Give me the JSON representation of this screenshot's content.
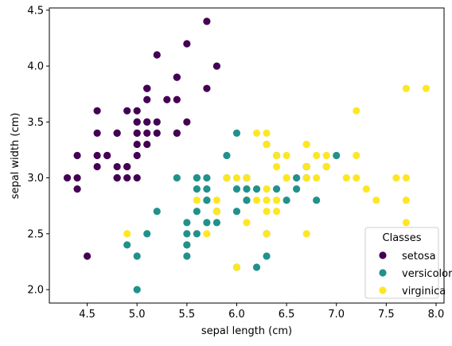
{
  "chart_data": {
    "type": "scatter",
    "xlabel": "sepal length (cm)",
    "ylabel": "sepal width (cm)",
    "xlim": [
      4.12,
      8.08
    ],
    "ylim": [
      1.88,
      4.52
    ],
    "xticks": [
      "4.5",
      "5.0",
      "5.5",
      "6.0",
      "6.5",
      "7.0",
      "7.5",
      "8.0"
    ],
    "yticks": [
      "2.0",
      "2.5",
      "3.0",
      "3.5",
      "4.0",
      "4.5"
    ],
    "grid": false,
    "legend": {
      "title": "Classes",
      "placement": "lower-right"
    },
    "series": [
      {
        "name": "setosa",
        "color": "#440154",
        "points": [
          [
            5.1,
            3.5
          ],
          [
            4.9,
            3.0
          ],
          [
            4.7,
            3.2
          ],
          [
            4.6,
            3.1
          ],
          [
            5.0,
            3.6
          ],
          [
            5.4,
            3.9
          ],
          [
            4.6,
            3.4
          ],
          [
            5.0,
            3.4
          ],
          [
            4.4,
            2.9
          ],
          [
            4.9,
            3.1
          ],
          [
            5.4,
            3.7
          ],
          [
            4.8,
            3.4
          ],
          [
            4.8,
            3.0
          ],
          [
            4.3,
            3.0
          ],
          [
            5.8,
            4.0
          ],
          [
            5.7,
            4.4
          ],
          [
            5.4,
            3.9
          ],
          [
            5.1,
            3.5
          ],
          [
            5.7,
            3.8
          ],
          [
            5.1,
            3.8
          ],
          [
            5.4,
            3.4
          ],
          [
            5.1,
            3.7
          ],
          [
            4.6,
            3.6
          ],
          [
            5.1,
            3.3
          ],
          [
            4.8,
            3.4
          ],
          [
            5.0,
            3.0
          ],
          [
            5.0,
            3.4
          ],
          [
            5.2,
            3.5
          ],
          [
            5.2,
            3.4
          ],
          [
            4.7,
            3.2
          ],
          [
            4.8,
            3.1
          ],
          [
            5.4,
            3.4
          ],
          [
            5.2,
            4.1
          ],
          [
            5.5,
            4.2
          ],
          [
            4.9,
            3.1
          ],
          [
            5.0,
            3.2
          ],
          [
            5.5,
            3.5
          ],
          [
            4.9,
            3.6
          ],
          [
            4.4,
            3.0
          ],
          [
            5.1,
            3.4
          ],
          [
            5.0,
            3.5
          ],
          [
            4.5,
            2.3
          ],
          [
            4.4,
            3.2
          ],
          [
            5.0,
            3.5
          ],
          [
            5.1,
            3.8
          ],
          [
            4.8,
            3.0
          ],
          [
            5.1,
            3.8
          ],
          [
            4.6,
            3.2
          ],
          [
            5.3,
            3.7
          ],
          [
            5.0,
            3.3
          ]
        ]
      },
      {
        "name": "versicolor",
        "color": "#21918c",
        "points": [
          [
            7.0,
            3.2
          ],
          [
            6.4,
            3.2
          ],
          [
            6.9,
            3.1
          ],
          [
            5.5,
            2.3
          ],
          [
            6.5,
            2.8
          ],
          [
            5.7,
            2.8
          ],
          [
            6.3,
            3.3
          ],
          [
            4.9,
            2.4
          ],
          [
            6.6,
            2.9
          ],
          [
            5.2,
            2.7
          ],
          [
            5.0,
            2.0
          ],
          [
            5.9,
            3.0
          ],
          [
            6.0,
            2.2
          ],
          [
            6.1,
            2.9
          ],
          [
            5.6,
            2.9
          ],
          [
            6.7,
            3.1
          ],
          [
            5.6,
            3.0
          ],
          [
            5.8,
            2.7
          ],
          [
            6.2,
            2.2
          ],
          [
            5.6,
            2.5
          ],
          [
            5.9,
            3.2
          ],
          [
            6.1,
            2.8
          ],
          [
            6.3,
            2.5
          ],
          [
            6.1,
            2.8
          ],
          [
            6.4,
            2.9
          ],
          [
            6.6,
            3.0
          ],
          [
            6.8,
            2.8
          ],
          [
            6.7,
            3.0
          ],
          [
            6.0,
            2.9
          ],
          [
            5.7,
            2.6
          ],
          [
            5.5,
            2.4
          ],
          [
            5.5,
            2.4
          ],
          [
            5.8,
            2.7
          ],
          [
            6.0,
            2.7
          ],
          [
            5.4,
            3.0
          ],
          [
            6.0,
            3.4
          ],
          [
            6.7,
            3.1
          ],
          [
            6.3,
            2.3
          ],
          [
            5.6,
            3.0
          ],
          [
            5.5,
            2.5
          ],
          [
            5.5,
            2.6
          ],
          [
            6.1,
            3.0
          ],
          [
            5.8,
            2.6
          ],
          [
            5.0,
            2.3
          ],
          [
            5.6,
            2.7
          ],
          [
            5.7,
            3.0
          ],
          [
            5.7,
            2.9
          ],
          [
            6.2,
            2.9
          ],
          [
            5.1,
            2.5
          ],
          [
            5.7,
            2.8
          ]
        ]
      },
      {
        "name": "virginica",
        "color": "#fde725",
        "points": [
          [
            6.3,
            3.3
          ],
          [
            5.8,
            2.7
          ],
          [
            7.1,
            3.0
          ],
          [
            6.3,
            2.9
          ],
          [
            6.5,
            3.0
          ],
          [
            7.6,
            3.0
          ],
          [
            4.9,
            2.5
          ],
          [
            7.3,
            2.9
          ],
          [
            6.7,
            2.5
          ],
          [
            7.2,
            3.6
          ],
          [
            6.5,
            3.2
          ],
          [
            6.4,
            2.7
          ],
          [
            6.8,
            3.0
          ],
          [
            5.7,
            2.5
          ],
          [
            5.8,
            2.8
          ],
          [
            6.4,
            3.2
          ],
          [
            6.5,
            3.0
          ],
          [
            7.7,
            3.8
          ],
          [
            7.7,
            2.6
          ],
          [
            6.0,
            2.2
          ],
          [
            6.9,
            3.2
          ],
          [
            5.6,
            2.8
          ],
          [
            7.7,
            2.8
          ],
          [
            6.3,
            2.7
          ],
          [
            6.7,
            3.3
          ],
          [
            7.2,
            3.2
          ],
          [
            6.2,
            2.8
          ],
          [
            6.1,
            3.0
          ],
          [
            6.4,
            2.8
          ],
          [
            7.2,
            3.0
          ],
          [
            7.4,
            2.8
          ],
          [
            7.9,
            3.8
          ],
          [
            6.4,
            2.8
          ],
          [
            6.3,
            2.8
          ],
          [
            6.1,
            2.6
          ],
          [
            7.7,
            3.0
          ],
          [
            6.3,
            3.4
          ],
          [
            6.4,
            3.1
          ],
          [
            6.0,
            3.0
          ],
          [
            6.9,
            3.1
          ],
          [
            6.7,
            3.1
          ],
          [
            6.9,
            3.1
          ],
          [
            5.8,
            2.7
          ],
          [
            6.8,
            3.2
          ],
          [
            6.7,
            3.3
          ],
          [
            6.7,
            3.0
          ],
          [
            6.3,
            2.5
          ],
          [
            6.5,
            3.0
          ],
          [
            6.2,
            3.4
          ],
          [
            5.9,
            3.0
          ]
        ]
      }
    ]
  }
}
